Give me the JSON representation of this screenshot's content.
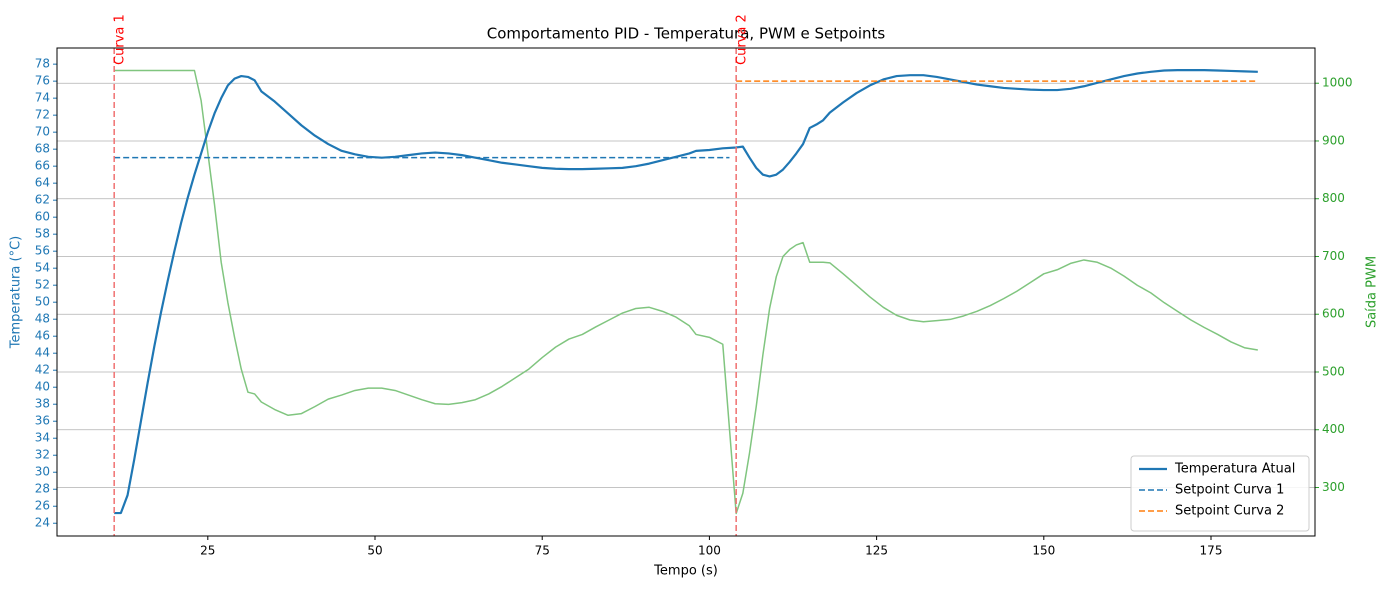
{
  "chart_data": {
    "type": "line",
    "title": "Comportamento PID - Temperatura, PWM e Setpoints",
    "xlabel": "Tempo (s)",
    "ylabel": "Temperatura (°C)",
    "y2label": "Saída PWM",
    "ylabel_color": "#1f77b4",
    "y2label_color": "#2ca02c",
    "xlim": [
      2.45,
      190.55
    ],
    "xticks": [
      25,
      50,
      75,
      100,
      125,
      150,
      175
    ],
    "ylim": [
      22.5,
      79.9
    ],
    "yticks": [
      24,
      26,
      28,
      30,
      32,
      34,
      36,
      38,
      40,
      42,
      44,
      46,
      48,
      50,
      52,
      54,
      56,
      58,
      60,
      62,
      64,
      66,
      68,
      70,
      72,
      74,
      76,
      78
    ],
    "y2lim": [
      216,
      1061
    ],
    "y2ticks": [
      300,
      400,
      500,
      600,
      700,
      800,
      900,
      1000
    ],
    "grid": "y2",
    "legend": "lower right",
    "x": [
      11,
      12,
      13,
      14,
      15,
      16,
      17,
      18,
      19,
      20,
      21,
      22,
      23,
      24,
      25,
      26,
      27,
      28,
      29,
      30,
      31,
      32,
      33,
      35,
      37,
      39,
      41,
      43,
      45,
      47,
      49,
      51,
      53,
      55,
      57,
      59,
      61,
      63,
      65,
      67,
      69,
      71,
      73,
      75,
      77,
      79,
      81,
      83,
      85,
      87,
      89,
      91,
      93,
      95,
      97,
      98,
      100,
      102,
      104,
      105,
      106,
      107,
      108,
      109,
      110,
      111,
      112,
      113,
      114,
      115,
      116,
      117,
      118,
      120,
      122,
      124,
      126,
      128,
      130,
      132,
      134,
      136,
      138,
      140,
      142,
      144,
      146,
      148,
      150,
      152,
      154,
      156,
      158,
      160,
      162,
      164,
      166,
      168,
      170,
      172,
      174,
      176,
      178,
      180,
      182
    ],
    "series": [
      {
        "name": "Temperatura Atual",
        "color": "#1f77b4",
        "values": [
          25.2,
          25.2,
          27.3,
          31.5,
          36,
          40.5,
          44.8,
          48.8,
          52.5,
          56,
          59.3,
          62.3,
          65,
          67.5,
          70,
          72.2,
          74,
          75.5,
          76.3,
          76.6,
          76.5,
          76.1,
          74.8,
          73.6,
          72.2,
          70.8,
          69.6,
          68.6,
          67.8,
          67.4,
          67.1,
          67.0,
          67.1,
          67.3,
          67.5,
          67.6,
          67.5,
          67.3,
          67.0,
          66.7,
          66.4,
          66.2,
          66.0,
          65.8,
          65.7,
          65.65,
          65.65,
          65.7,
          65.75,
          65.8,
          66.0,
          66.3,
          66.7,
          67.1,
          67.5,
          67.8,
          67.9,
          68.1,
          68.2,
          68.3,
          67,
          65.8,
          65,
          64.8,
          65,
          65.6,
          66.5,
          67.5,
          68.6,
          70.5,
          70.9,
          71.4,
          72.3,
          73.5,
          74.6,
          75.5,
          76.2,
          76.6,
          76.7,
          76.7,
          76.5,
          76.2,
          75.9,
          75.6,
          75.4,
          75.2,
          75.1,
          75.0,
          74.95,
          74.95,
          75.1,
          75.4,
          75.8,
          76.2,
          76.6,
          76.9,
          77.1,
          77.25,
          77.3,
          77.3,
          77.3,
          77.25,
          77.2,
          77.15,
          77.1
        ]
      },
      {
        "name": "Setpoint Curva 1",
        "color": "#1f77b4",
        "dashed": true,
        "x": [
          11,
          103
        ],
        "values": [
          67,
          67
        ]
      },
      {
        "name": "Setpoint Curva 2",
        "color": "#ff7f0e",
        "dashed": true,
        "x": [
          104,
          182
        ],
        "values": [
          76,
          76
        ]
      },
      {
        "color": "#80c57f",
        "axis": "y2",
        "values": [
          1022,
          1022,
          1022,
          1022,
          1022,
          1022,
          1022,
          1022,
          1022,
          1022,
          1022,
          1022,
          1022,
          970,
          880,
          790,
          690,
          620,
          560,
          505,
          465,
          462,
          448,
          435,
          425,
          428,
          440,
          453,
          460,
          468,
          472,
          472,
          468,
          460,
          452,
          445,
          444,
          447,
          452,
          462,
          475,
          490,
          505,
          525,
          543,
          557,
          565,
          578,
          590,
          602,
          610,
          612,
          605,
          595,
          580,
          565,
          560,
          548,
          255,
          290,
          360,
          440,
          530,
          610,
          665,
          700,
          712,
          720,
          724,
          690,
          690,
          690,
          689,
          670,
          650,
          630,
          612,
          598,
          590,
          587,
          589,
          591,
          597,
          605,
          615,
          627,
          640,
          655,
          670,
          677,
          688,
          694,
          690,
          680,
          666,
          650,
          637,
          620,
          605,
          590,
          577,
          565,
          552,
          542,
          538
        ]
      }
    ],
    "vlines": [
      {
        "x": 11,
        "label": "Curva 1",
        "color": "#f07070"
      },
      {
        "x": 104,
        "label": "Curva 2",
        "color": "#f07070"
      }
    ]
  }
}
